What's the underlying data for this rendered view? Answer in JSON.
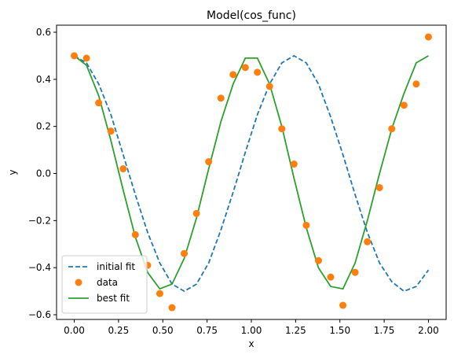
{
  "chart_data": {
    "type": "line",
    "title": "Model(cos_func)",
    "xlabel": "x",
    "ylabel": "y",
    "xlim": [
      -0.1,
      2.1
    ],
    "ylim": [
      -0.62,
      0.63
    ],
    "xticks": [
      0.0,
      0.25,
      0.5,
      0.75,
      1.0,
      1.25,
      1.5,
      1.75,
      2.0
    ],
    "xtick_labels": [
      "0.00",
      "0.25",
      "0.50",
      "0.75",
      "1.00",
      "1.25",
      "1.50",
      "1.75",
      "2.00"
    ],
    "yticks": [
      -0.6,
      -0.4,
      -0.2,
      0.0,
      0.2,
      0.4,
      0.6
    ],
    "ytick_labels": [
      "−0.6",
      "−0.4",
      "−0.2",
      "0.0",
      "0.2",
      "0.4",
      "0.6"
    ],
    "grid": false,
    "legend_position": "lower-left",
    "series": [
      {
        "name": "initial fit",
        "style": "dashed-line",
        "color": "#1f77b4",
        "x": [
          0.0,
          0.069,
          0.138,
          0.207,
          0.276,
          0.345,
          0.414,
          0.483,
          0.552,
          0.621,
          0.69,
          0.759,
          0.828,
          0.897,
          0.966,
          1.034,
          1.103,
          1.172,
          1.241,
          1.31,
          1.379,
          1.448,
          1.517,
          1.586,
          1.655,
          1.724,
          1.793,
          1.862,
          1.931,
          2.0
        ],
        "y": [
          0.5,
          0.47,
          0.38,
          0.25,
          0.08,
          -0.09,
          -0.25,
          -0.38,
          -0.47,
          -0.5,
          -0.47,
          -0.38,
          -0.24,
          -0.08,
          0.09,
          0.25,
          0.38,
          0.47,
          0.5,
          0.47,
          0.38,
          0.24,
          0.08,
          -0.09,
          -0.25,
          -0.38,
          -0.46,
          -0.5,
          -0.48,
          -0.41
        ]
      },
      {
        "name": "data",
        "style": "markers",
        "color": "#ff7f0e",
        "x": [
          0.0,
          0.069,
          0.138,
          0.207,
          0.276,
          0.345,
          0.414,
          0.483,
          0.552,
          0.621,
          0.69,
          0.759,
          0.828,
          0.897,
          0.966,
          1.034,
          1.103,
          1.172,
          1.241,
          1.31,
          1.379,
          1.448,
          1.517,
          1.586,
          1.655,
          1.724,
          1.793,
          1.862,
          1.931,
          2.0
        ],
        "y": [
          0.5,
          0.49,
          0.3,
          0.18,
          0.02,
          -0.26,
          -0.39,
          -0.51,
          -0.57,
          -0.34,
          -0.17,
          0.05,
          0.32,
          0.42,
          0.45,
          0.43,
          0.37,
          0.19,
          0.04,
          -0.22,
          -0.37,
          -0.44,
          -0.56,
          -0.42,
          -0.29,
          -0.06,
          0.19,
          0.29,
          0.38,
          0.58
        ]
      },
      {
        "name": "best fit",
        "style": "solid-line",
        "color": "#2ca02c",
        "x": [
          0.0,
          0.069,
          0.138,
          0.207,
          0.276,
          0.345,
          0.414,
          0.483,
          0.552,
          0.621,
          0.69,
          0.759,
          0.828,
          0.897,
          0.966,
          1.034,
          1.103,
          1.172,
          1.241,
          1.31,
          1.379,
          1.448,
          1.517,
          1.586,
          1.655,
          1.724,
          1.793,
          1.862,
          1.931,
          2.0
        ],
        "y": [
          0.5,
          0.46,
          0.33,
          0.14,
          -0.07,
          -0.27,
          -0.42,
          -0.49,
          -0.47,
          -0.36,
          -0.19,
          0.02,
          0.22,
          0.38,
          0.49,
          0.49,
          0.38,
          0.2,
          -0.02,
          -0.23,
          -0.4,
          -0.48,
          -0.49,
          -0.38,
          -0.2,
          0.0,
          0.19,
          0.34,
          0.47,
          0.5
        ]
      }
    ]
  }
}
